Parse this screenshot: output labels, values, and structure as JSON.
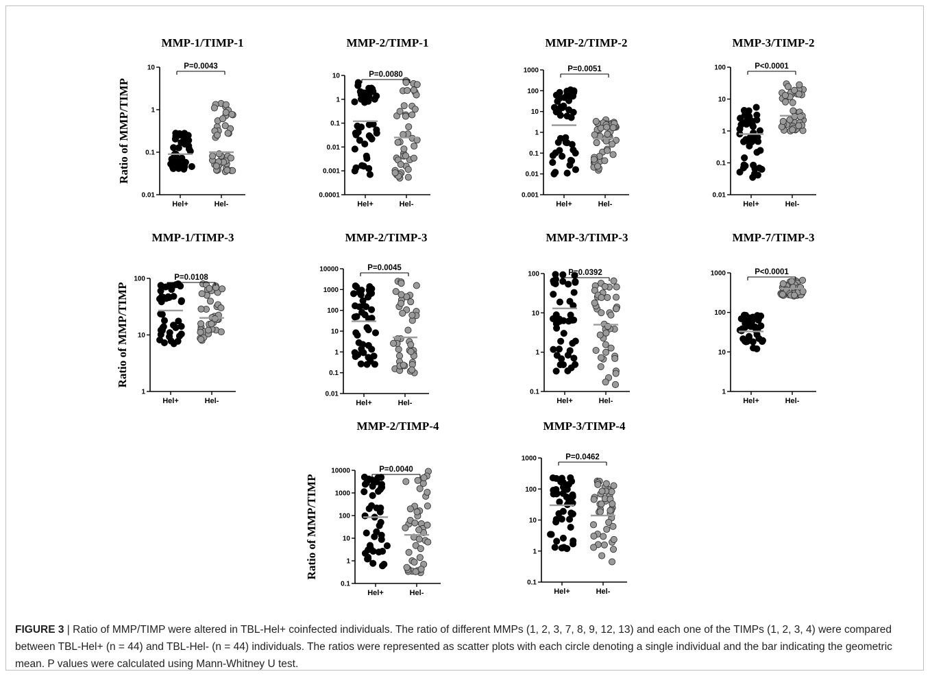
{
  "y_axis_label": "Ratio of MMP/TIMP",
  "colors": {
    "hel_pos": "#000000",
    "hel_neg": "#9a9a9a",
    "mean_bar": "#9a9a9a"
  },
  "caption": {
    "label": "FIGURE 3",
    "separator": " | ",
    "text": "Ratio of MMP/TIMP were altered in TBL-Hel+ coinfected individuals. The ratio of different MMPs (1, 2, 3, 7, 8, 9, 12, 13) and each one of the TIMPs (1, 2, 3, 4) were compared between TBL-Hel+ (n = 44) and TBL-Hel- (n = 44) individuals. The ratios were represented as scatter plots with each circle denoting a single individual and the bar indicating the geometric mean. P values were calculated using Mann-Whitney U test."
  },
  "chart_data": [
    {
      "type": "scatter",
      "title": "MMP-1/TIMP-1",
      "pvalue": "P=0.0043",
      "yscale": "log",
      "ylim": [
        0.01,
        10
      ],
      "yticks": [
        "10",
        "1",
        "0.1",
        "0.01"
      ],
      "categories": [
        "Hel+",
        "Hel-"
      ],
      "series": [
        {
          "name": "Hel+",
          "mean": 0.09,
          "min": 0.04,
          "max": 0.28
        },
        {
          "name": "Hel-",
          "mean": 0.1,
          "min": 0.035,
          "max": 1.4
        }
      ]
    },
    {
      "type": "scatter",
      "title": "MMP-2/TIMP-1",
      "pvalue": "P=0.0080",
      "yscale": "log",
      "ylim": [
        0.0001,
        10
      ],
      "yticks": [
        "10",
        "1",
        "0.1",
        "0.01",
        "0.001",
        "0.0001"
      ],
      "categories": [
        "Hel+",
        "Hel-"
      ],
      "series": [
        {
          "name": "Hel+",
          "mean": 0.12,
          "min": 0.0007,
          "max": 5
        },
        {
          "name": "Hel-",
          "mean": 0.025,
          "min": 0.0005,
          "max": 6
        }
      ]
    },
    {
      "type": "scatter",
      "title": "MMP-2/TIMP-2",
      "pvalue": "P=0.0051",
      "yscale": "log",
      "ylim": [
        0.001,
        1000
      ],
      "yticks": [
        "1000",
        "100",
        "10",
        "1",
        "0.1",
        "0.01",
        "0.001"
      ],
      "categories": [
        "Hel+",
        "Hel-"
      ],
      "series": [
        {
          "name": "Hel+",
          "mean": 2.2,
          "min": 0.01,
          "max": 110
        },
        {
          "name": "Hel-",
          "mean": 0.5,
          "min": 0.015,
          "max": 4
        }
      ]
    },
    {
      "type": "scatter",
      "title": "MMP-3/TIMP-2",
      "pvalue": "P<0.0001",
      "yscale": "log",
      "ylim": [
        0.01,
        100
      ],
      "yticks": [
        "100",
        "10",
        "1",
        "0.1",
        "0.01"
      ],
      "categories": [
        "Hel+",
        "Hel-"
      ],
      "series": [
        {
          "name": "Hel+",
          "mean": 0.8,
          "min": 0.035,
          "max": 5.5
        },
        {
          "name": "Hel-",
          "mean": 3,
          "min": 1,
          "max": 30
        }
      ]
    },
    {
      "type": "scatter",
      "title": "MMP-1/TIMP-3",
      "pvalue": "P=0.0108",
      "yscale": "log",
      "ylim": [
        1,
        100
      ],
      "yticks": [
        "100",
        "10",
        "1"
      ],
      "categories": [
        "Hel+",
        "Hel-"
      ],
      "series": [
        {
          "name": "Hel+",
          "mean": 27,
          "min": 7,
          "max": 80
        },
        {
          "name": "Hel-",
          "mean": 20,
          "min": 8,
          "max": 80
        }
      ]
    },
    {
      "type": "scatter",
      "title": "MMP-2/TIMP-3",
      "pvalue": "P=0.0045",
      "yscale": "log",
      "ylim": [
        0.01,
        10000
      ],
      "yticks": [
        "10000",
        "1000",
        "100",
        "10",
        "1",
        "0.1",
        "0.01"
      ],
      "categories": [
        "Hel+",
        "Hel-"
      ],
      "series": [
        {
          "name": "Hel+",
          "mean": 30,
          "min": 0.25,
          "max": 1500
        },
        {
          "name": "Hel-",
          "mean": 5,
          "min": 0.1,
          "max": 2500
        }
      ]
    },
    {
      "type": "scatter",
      "title": "MMP-3/TIMP-3",
      "pvalue": "P=0.0392",
      "yscale": "log",
      "ylim": [
        0.1,
        100
      ],
      "yticks": [
        "100",
        "10",
        "1",
        "0.1"
      ],
      "categories": [
        "Hel+",
        "Hel-"
      ],
      "series": [
        {
          "name": "Hel+",
          "mean": 13,
          "min": 0.33,
          "max": 95
        },
        {
          "name": "Hel-",
          "mean": 5,
          "min": 0.15,
          "max": 65
        }
      ]
    },
    {
      "type": "scatter",
      "title": "MMP-7/TIMP-3",
      "pvalue": "P<0.0001",
      "yscale": "log",
      "ylim": [
        1,
        1000
      ],
      "yticks": [
        "1000",
        "100",
        "10",
        "1"
      ],
      "categories": [
        "Hel+",
        "Hel-"
      ],
      "series": [
        {
          "name": "Hel+",
          "mean": 33,
          "min": 12,
          "max": 85
        },
        {
          "name": "Hel-",
          "mean": 400,
          "min": 260,
          "max": 650
        }
      ]
    },
    {
      "type": "scatter",
      "title": "MMP-2/TIMP-4",
      "pvalue": "P=0.0040",
      "yscale": "log",
      "ylim": [
        0.1,
        10000
      ],
      "yticks": [
        "10000",
        "1000",
        "100",
        "10",
        "1",
        "0.1"
      ],
      "categories": [
        "Hel+",
        "Hel-"
      ],
      "series": [
        {
          "name": "Hel+",
          "mean": 85,
          "min": 0.6,
          "max": 5000
        },
        {
          "name": "Hel-",
          "mean": 14,
          "min": 0.3,
          "max": 9000
        }
      ]
    },
    {
      "type": "scatter",
      "title": "MMP-3/TIMP-4",
      "pvalue": "P=0.0462",
      "yscale": "log",
      "ylim": [
        0.1,
        1000
      ],
      "yticks": [
        "1000",
        "100",
        "10",
        "1",
        "0.1"
      ],
      "categories": [
        "Hel+",
        "Hel-"
      ],
      "series": [
        {
          "name": "Hel+",
          "mean": 30,
          "min": 1.2,
          "max": 230
        },
        {
          "name": "Hel-",
          "mean": 14,
          "min": 0.45,
          "max": 180
        }
      ]
    }
  ]
}
